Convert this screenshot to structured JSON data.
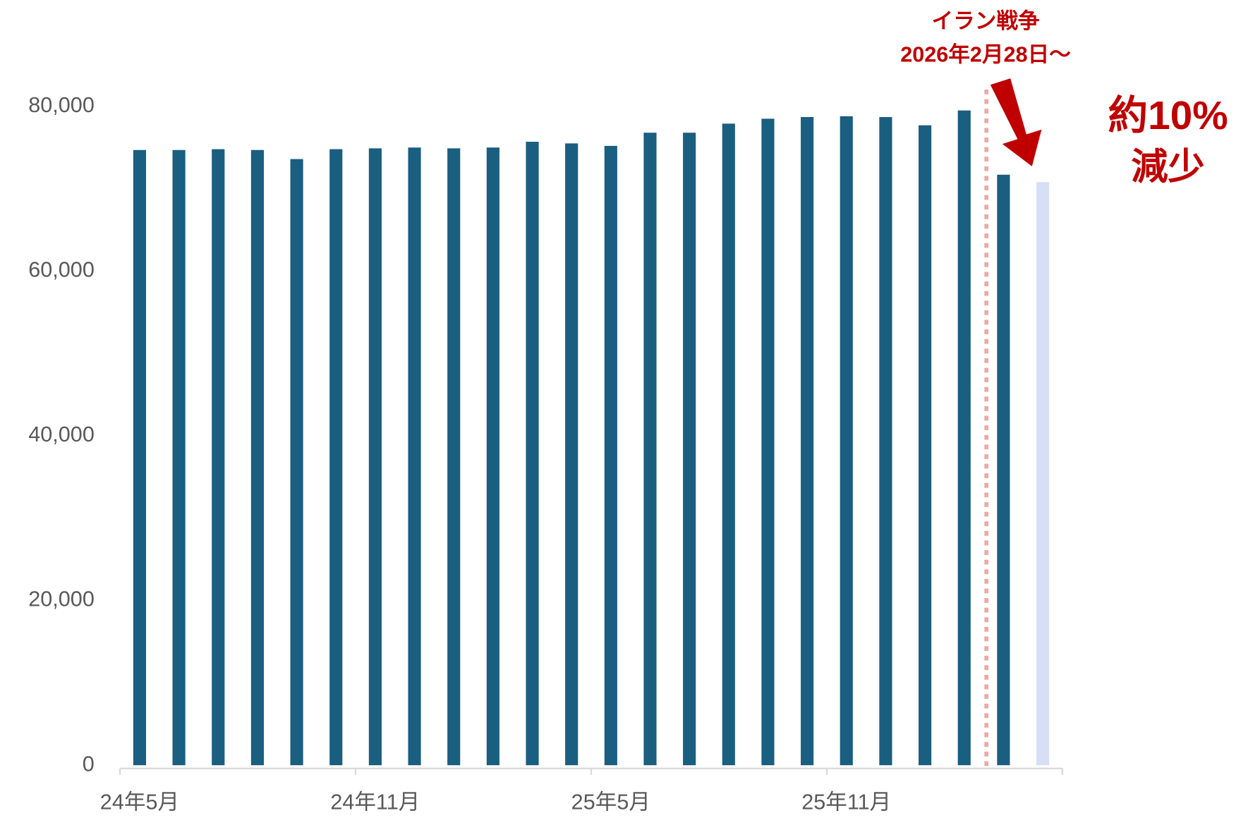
{
  "chart_data": {
    "type": "bar",
    "categories": [
      "24年5月",
      null,
      null,
      null,
      null,
      null,
      "24年11月",
      null,
      null,
      null,
      null,
      null,
      "25年5月",
      null,
      null,
      null,
      null,
      null,
      "25年11月",
      null,
      null,
      null,
      null,
      null
    ],
    "values": [
      74700,
      74700,
      74800,
      74700,
      73600,
      74800,
      74900,
      75000,
      74900,
      75000,
      75700,
      75500,
      75200,
      76800,
      76800,
      77900,
      78500,
      78700,
      78800,
      78700,
      77700,
      79500,
      71700,
      70800
    ],
    "colors": [
      "#1a5e80",
      "#1a5e80",
      "#1a5e80",
      "#1a5e80",
      "#1a5e80",
      "#1a5e80",
      "#1a5e80",
      "#1a5e80",
      "#1a5e80",
      "#1a5e80",
      "#1a5e80",
      "#1a5e80",
      "#1a5e80",
      "#1a5e80",
      "#1a5e80",
      "#1a5e80",
      "#1a5e80",
      "#1a5e80",
      "#1a5e80",
      "#1a5e80",
      "#1a5e80",
      "#1a5e80",
      "#1a5e80",
      "#d6dff5"
    ],
    "ylim": [
      0,
      80000
    ],
    "yticks": [
      0,
      {
        "value": 20000,
        "label": "20,000"
      },
      {
        "value": 40000,
        "label": "40,000"
      },
      {
        "value": 60000,
        "label": "60,000"
      },
      {
        "value": 80000,
        "label": "80,000"
      }
    ],
    "grid": false,
    "annotations": [
      "イラン戦争",
      "2026年2月28日～",
      "約10%",
      "減少"
    ]
  }
}
